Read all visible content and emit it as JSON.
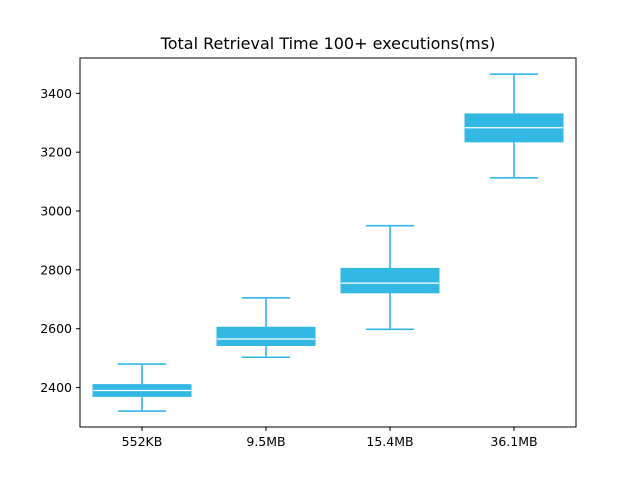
{
  "chart_data": {
    "type": "box",
    "title": "Total Retrieval Time 100+ executions(ms)",
    "xlabel": "",
    "ylabel": "",
    "categories": [
      "552KB",
      "9.5MB",
      "15.4MB",
      "36.1MB"
    ],
    "boxes": [
      {
        "category": "552KB",
        "whisker_low": 2320,
        "q1": 2370,
        "median": 2390,
        "q3": 2410,
        "whisker_high": 2480
      },
      {
        "category": "9.5MB",
        "whisker_low": 2503,
        "q1": 2543,
        "median": 2565,
        "q3": 2605,
        "whisker_high": 2705
      },
      {
        "category": "15.4MB",
        "whisker_low": 2598,
        "q1": 2722,
        "median": 2755,
        "q3": 2805,
        "whisker_high": 2950
      },
      {
        "category": "36.1MB",
        "whisker_low": 3113,
        "q1": 3235,
        "median": 3283,
        "q3": 3330,
        "whisker_high": 3465
      }
    ],
    "y_ticks": [
      2400,
      2600,
      2800,
      3000,
      3200,
      3400
    ],
    "ylim": [
      2266,
      3520
    ],
    "grid": false,
    "legend": "none",
    "colors": {
      "box_fill": "#33b8e3",
      "whisker": "#33b8e3",
      "median": "#ffffff",
      "axes": "#000000"
    }
  }
}
